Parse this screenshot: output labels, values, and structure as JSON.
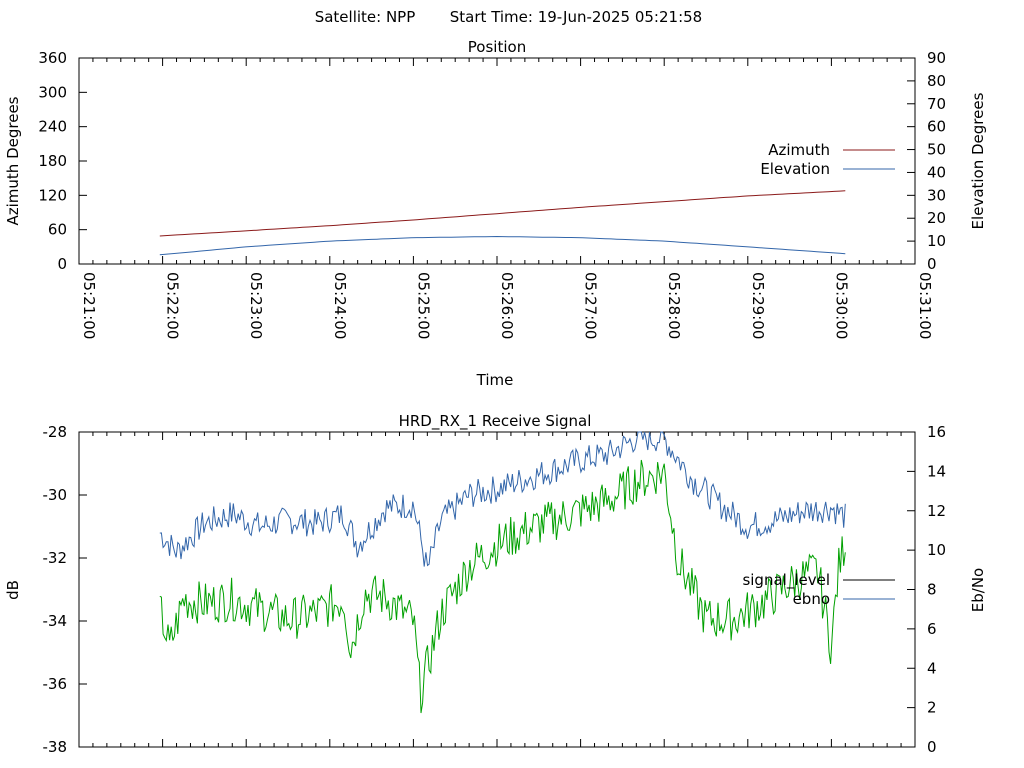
{
  "header": {
    "satellite": "Satellite: NPP",
    "start_time": "Start Time: 19-Jun-2025 05:21:58"
  },
  "chart_data": [
    {
      "type": "line",
      "title": "Position",
      "xlabel": "Time",
      "ylabel": "Azimuth Degrees",
      "y2label": "Elevation Degrees",
      "xlim": [
        "05:21:00",
        "05:31:00"
      ],
      "x_ticks": [
        "05:21:00",
        "05:22:00",
        "05:23:00",
        "05:24:00",
        "05:25:00",
        "05:26:00",
        "05:27:00",
        "05:28:00",
        "05:29:00",
        "05:30:00",
        "05:31:00"
      ],
      "ylim": [
        0,
        360
      ],
      "y_ticks": [
        "0",
        "60",
        "120",
        "180",
        "240",
        "300",
        "360"
      ],
      "y2lim": [
        0,
        90
      ],
      "y2_ticks": [
        "0",
        "10",
        "20",
        "30",
        "40",
        "50",
        "60",
        "70",
        "80",
        "90"
      ],
      "legend_position": "right",
      "series": [
        {
          "name": "Azimuth",
          "axis": "y",
          "color": "#8b1a1a",
          "x": [
            "05:21:58",
            "05:23:00",
            "05:24:00",
            "05:25:00",
            "05:26:00",
            "05:27:00",
            "05:28:00",
            "05:29:00",
            "05:30:10"
          ],
          "values": [
            49,
            58,
            67,
            77,
            88,
            99,
            109,
            119,
            128
          ]
        },
        {
          "name": "Elevation",
          "axis": "y2",
          "color": "#3366aa",
          "x": [
            "05:21:58",
            "05:23:00",
            "05:24:00",
            "05:25:00",
            "05:26:00",
            "05:27:00",
            "05:28:00",
            "05:29:00",
            "05:30:10"
          ],
          "values": [
            4,
            7.5,
            10,
            11.5,
            12,
            11.5,
            10,
            7.5,
            4.5
          ]
        }
      ]
    },
    {
      "type": "line",
      "title": "HRD_RX_1 Receive Signal",
      "ylabel": "dB",
      "y2label": "Eb/No",
      "xlim": [
        "05:21:00",
        "05:31:00"
      ],
      "ylim": [
        -38,
        -28
      ],
      "y_ticks": [
        "-38",
        "-36",
        "-34",
        "-32",
        "-30",
        "-28"
      ],
      "y2lim": [
        0,
        16
      ],
      "y2_ticks": [
        "0",
        "2",
        "4",
        "6",
        "8",
        "10",
        "12",
        "14",
        "16"
      ],
      "legend_position": "right",
      "series": [
        {
          "name": "signal_level",
          "axis": "y",
          "color": "#3366aa",
          "x": [
            "05:21:58",
            "05:22:10",
            "05:22:30",
            "05:22:50",
            "05:23:10",
            "05:23:30",
            "05:23:50",
            "05:24:10",
            "05:24:20",
            "05:24:40",
            "05:25:00",
            "05:25:10",
            "05:25:20",
            "05:25:40",
            "05:26:00",
            "05:26:20",
            "05:26:40",
            "05:27:00",
            "05:27:20",
            "05:27:40",
            "05:28:00",
            "05:28:20",
            "05:28:40",
            "05:29:00",
            "05:29:20",
            "05:29:40",
            "05:30:00",
            "05:30:10"
          ],
          "values": [
            -31.2,
            -31.8,
            -30.9,
            -30.6,
            -31.0,
            -30.8,
            -30.9,
            -30.6,
            -31.6,
            -30.4,
            -30.3,
            -32.4,
            -30.8,
            -30.0,
            -29.8,
            -29.5,
            -29.2,
            -28.9,
            -28.7,
            -28.2,
            -28.2,
            -29.5,
            -30.3,
            -31.0,
            -30.8,
            -30.5,
            -30.4,
            -30.7
          ]
        },
        {
          "name": "ebno",
          "axis": "y2",
          "color": "#00a000",
          "x": [
            "05:21:58",
            "05:22:05",
            "05:22:15",
            "05:22:30",
            "05:22:50",
            "05:23:10",
            "05:23:30",
            "05:23:50",
            "05:24:10",
            "05:24:15",
            "05:24:25",
            "05:24:40",
            "05:25:00",
            "05:25:05",
            "05:25:20",
            "05:25:40",
            "05:26:00",
            "05:26:20",
            "05:26:40",
            "05:27:00",
            "05:27:20",
            "05:27:40",
            "05:28:00",
            "05:28:10",
            "05:28:30",
            "05:28:50",
            "05:29:10",
            "05:29:30",
            "05:29:50",
            "05:30:00",
            "05:30:05",
            "05:30:10"
          ],
          "values": [
            7.0,
            5.0,
            7.5,
            7.3,
            7.5,
            7.0,
            6.5,
            6.8,
            7.5,
            5.0,
            7.8,
            7.6,
            6.4,
            2.7,
            6.8,
            9.2,
            10.3,
            11.0,
            11.5,
            12.0,
            12.5,
            13.5,
            14.0,
            9.5,
            6.5,
            6.5,
            7.3,
            8.3,
            9.0,
            5.1,
            9.0,
            10.5
          ]
        }
      ]
    }
  ]
}
